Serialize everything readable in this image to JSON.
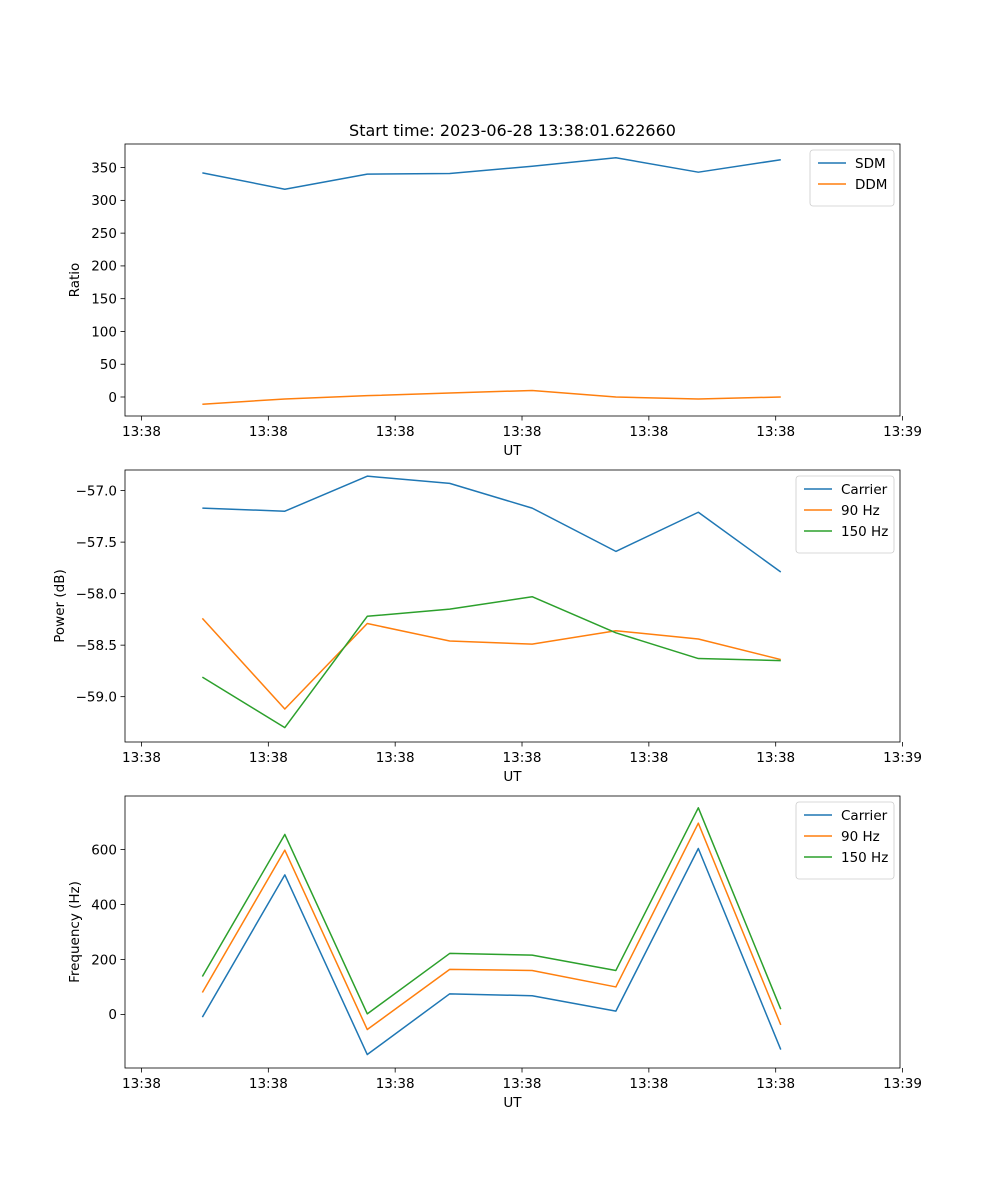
{
  "figure": {
    "title": "Start time: 2023-06-28 13:38:01.622660"
  },
  "chart_data": [
    {
      "type": "line",
      "title": "Start time: 2023-06-28 13:38:01.622660",
      "xlabel": "UT",
      "ylabel": "Ratio",
      "x_tick_labels": [
        "13:38",
        "13:38",
        "13:38",
        "13:38",
        "13:38",
        "13:38",
        "13:39"
      ],
      "x_tick_values": [
        0,
        1,
        2,
        3,
        4,
        5,
        6
      ],
      "xlim": [
        -0.13,
        5.98
      ],
      "x": [
        0.48,
        1.13,
        1.78,
        2.43,
        3.08,
        3.74,
        4.39,
        5.04
      ],
      "ylim": [
        -29,
        386
      ],
      "y_ticks": [
        0,
        50,
        100,
        150,
        200,
        250,
        300,
        350
      ],
      "series": [
        {
          "name": "SDM",
          "color": "#1f77b4",
          "values": [
            342,
            317,
            340,
            341,
            352,
            365,
            343,
            362
          ]
        },
        {
          "name": "DDM",
          "color": "#ff7f0e",
          "values": [
            -11,
            -3,
            2,
            6,
            10,
            0,
            -3,
            0
          ]
        }
      ],
      "legend": "top-right",
      "grid": false
    },
    {
      "type": "line",
      "title": "",
      "xlabel": "UT",
      "ylabel": "Power (dB)",
      "x_tick_labels": [
        "13:38",
        "13:38",
        "13:38",
        "13:38",
        "13:38",
        "13:38",
        "13:39"
      ],
      "x_tick_values": [
        0,
        1,
        2,
        3,
        4,
        5,
        6
      ],
      "xlim": [
        -0.13,
        5.98
      ],
      "x": [
        0.48,
        1.13,
        1.78,
        2.43,
        3.08,
        3.74,
        4.39,
        5.04
      ],
      "ylim": [
        -59.44,
        -56.8
      ],
      "y_ticks": [
        -59.0,
        -58.5,
        -58.0,
        -57.5,
        -57.0
      ],
      "y_tick_labels": [
        "−59.0",
        "−58.5",
        "−58.0",
        "−57.5",
        "−57.0"
      ],
      "series": [
        {
          "name": "Carrier",
          "color": "#1f77b4",
          "values": [
            -57.17,
            -57.2,
            -56.86,
            -56.93,
            -57.17,
            -57.59,
            -57.21,
            -57.79
          ]
        },
        {
          "name": "90 Hz",
          "color": "#ff7f0e",
          "values": [
            -58.24,
            -59.12,
            -58.29,
            -58.46,
            -58.49,
            -58.36,
            -58.44,
            -58.64
          ]
        },
        {
          "name": "150 Hz",
          "color": "#2ca02c",
          "values": [
            -58.81,
            -59.3,
            -58.22,
            -58.15,
            -58.03,
            -58.38,
            -58.63,
            -58.65
          ]
        }
      ],
      "legend": "top-right",
      "grid": false
    },
    {
      "type": "line",
      "title": "",
      "xlabel": "UT",
      "ylabel": "Frequency (Hz)",
      "x_tick_labels": [
        "13:38",
        "13:38",
        "13:38",
        "13:38",
        "13:38",
        "13:38",
        "13:39"
      ],
      "x_tick_values": [
        0,
        1,
        2,
        3,
        4,
        5,
        6
      ],
      "xlim": [
        -0.13,
        5.98
      ],
      "x": [
        0.48,
        1.13,
        1.78,
        2.43,
        3.08,
        3.74,
        4.39,
        5.04
      ],
      "ylim": [
        -195,
        795
      ],
      "y_ticks": [
        0,
        200,
        400,
        600
      ],
      "series": [
        {
          "name": "Carrier",
          "color": "#1f77b4",
          "values": [
            -10,
            508,
            -146,
            75,
            68,
            12,
            604,
            -128
          ]
        },
        {
          "name": "90 Hz",
          "color": "#ff7f0e",
          "values": [
            80,
            598,
            -55,
            164,
            160,
            100,
            696,
            -38
          ]
        },
        {
          "name": "150 Hz",
          "color": "#2ca02c",
          "values": [
            138,
            655,
            2,
            222,
            216,
            160,
            752,
            19
          ]
        }
      ],
      "legend": "top-right",
      "grid": false
    }
  ]
}
